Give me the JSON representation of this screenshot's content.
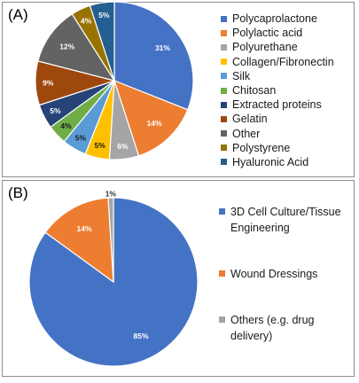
{
  "chart_data": [
    {
      "type": "pie",
      "panel_label": "(A)",
      "title": "",
      "legend_position": "right",
      "categories": [
        "Polycaprolactone",
        "Polylactic acid",
        "Polyurethane",
        "Collagen/Fibronectin",
        "Silk",
        "Chitosan",
        "Extracted proteins",
        "Gelatin",
        "Other",
        "Polystyrene",
        "Hyaluronic Acid"
      ],
      "values": [
        31,
        14,
        6,
        5,
        5,
        4,
        5,
        9,
        12,
        4,
        5
      ],
      "labels": [
        "31%",
        "14%",
        "6%",
        "5%",
        "5%",
        "4%",
        "5%",
        "9%",
        "12%",
        "4%",
        "5%"
      ],
      "colors": [
        "#4472C4",
        "#ED7D31",
        "#A5A5A5",
        "#FFC000",
        "#5B9BD5",
        "#70AD47",
        "#264478",
        "#9E480E",
        "#636363",
        "#997300",
        "#255E91"
      ]
    },
    {
      "type": "pie",
      "panel_label": "(B)",
      "title": "",
      "legend_position": "right",
      "categories": [
        "3D Cell Culture/Tissue Engineering",
        "Wound Dressings",
        "Others (e.g. drug delivery)"
      ],
      "values": [
        85,
        14,
        1
      ],
      "labels": [
        "85%",
        "14%",
        "1%"
      ],
      "colors": [
        "#4472C4",
        "#ED7D31",
        "#A5A5A5"
      ]
    }
  ]
}
